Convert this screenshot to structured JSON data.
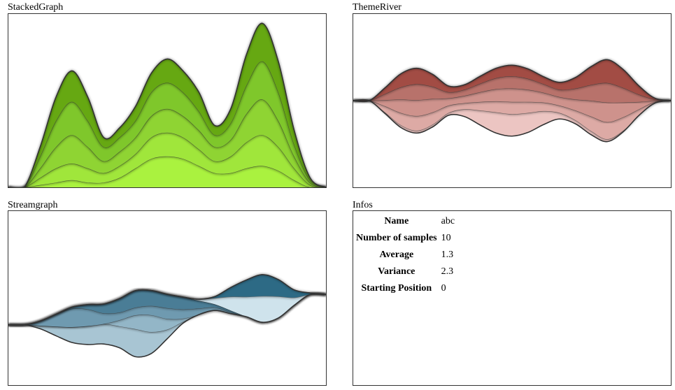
{
  "titles": {
    "stacked": "StackedGraph",
    "theme": "ThemeRiver",
    "stream": "Streamgraph",
    "infos": "Infos"
  },
  "infos": [
    {
      "key": "Name",
      "value": "abc"
    },
    {
      "key": "Number of samples",
      "value": "10"
    },
    {
      "key": "Average",
      "value": "1.3"
    },
    {
      "key": "Variance",
      "value": "2.3"
    },
    {
      "key": "Starting Position",
      "value": "0"
    }
  ],
  "chart_data": [
    {
      "type": "area",
      "title": "StackedGraph",
      "layout": "stacked",
      "x": [
        0,
        1,
        2,
        3,
        4,
        5,
        6,
        7,
        8,
        9,
        10,
        11,
        12,
        13,
        14,
        15,
        16,
        17,
        18,
        19,
        20
      ],
      "series": [
        {
          "values": [
            0,
            0,
            0.1,
            0.2,
            0.3,
            0.2,
            0.2,
            0.4,
            0.8,
            1.2,
            1.3,
            1.2,
            0.9,
            0.6,
            0.6,
            0.8,
            0.9,
            0.7,
            0.3,
            0,
            0
          ],
          "color": "#aaf23f"
        },
        {
          "values": [
            0,
            0,
            0.3,
            0.6,
            0.7,
            0.6,
            0.4,
            0.5,
            0.6,
            0.9,
            1.0,
            0.9,
            0.7,
            0.5,
            0.7,
            1.1,
            1.3,
            1.0,
            0.5,
            0.1,
            0
          ],
          "color": "#a0e63b"
        },
        {
          "values": [
            0,
            0,
            0.4,
            0.9,
            1.2,
            0.9,
            0.5,
            0.6,
            0.7,
            0.9,
            1.0,
            0.9,
            0.8,
            0.6,
            0.7,
            1.2,
            1.5,
            1.1,
            0.5,
            0.1,
            0
          ],
          "color": "#8fd433"
        },
        {
          "values": [
            0,
            0,
            0.5,
            1.1,
            1.4,
            1.1,
            0.6,
            0.6,
            0.7,
            1.0,
            1.1,
            1.0,
            0.8,
            0.5,
            0.7,
            1.2,
            1.6,
            1.2,
            0.5,
            0.1,
            0
          ],
          "color": "#7fc72b"
        },
        {
          "values": [
            0,
            0,
            0.4,
            1.0,
            1.3,
            1.0,
            0.4,
            0.4,
            0.6,
            0.8,
            1.0,
            0.9,
            0.8,
            0.4,
            0.6,
            1.3,
            1.6,
            1.3,
            0.6,
            0.1,
            0
          ],
          "color": "#66a812"
        }
      ]
    },
    {
      "type": "area",
      "title": "ThemeRiver",
      "layout": "symmetric",
      "x": [
        0,
        1,
        2,
        3,
        4,
        5,
        6,
        7,
        8,
        9,
        10,
        11,
        12,
        13,
        14,
        15,
        16,
        17,
        18,
        19,
        20
      ],
      "series": [
        {
          "values": [
            0,
            0,
            0.1,
            0.2,
            0.2,
            0.2,
            0.2,
            0.6,
            1.2,
            1.7,
            1.8,
            1.6,
            1.1,
            0.5,
            0.3,
            0.3,
            0.2,
            0.1,
            0,
            0,
            0
          ],
          "color": "#ecc5c2"
        },
        {
          "values": [
            0,
            0,
            0.5,
            1.0,
            1.2,
            1.0,
            0.6,
            0.5,
            0.7,
            0.9,
            1.0,
            0.9,
            0.7,
            0.6,
            0.8,
            1.2,
            1.4,
            1.1,
            0.5,
            0.1,
            0
          ],
          "color": "#ddaaa5"
        },
        {
          "values": [
            0,
            0,
            0.5,
            1.1,
            1.3,
            1.1,
            0.6,
            0.6,
            0.8,
            1.0,
            1.1,
            1.0,
            0.8,
            0.7,
            0.9,
            1.3,
            1.6,
            1.2,
            0.6,
            0.1,
            0
          ],
          "color": "#ce928c"
        },
        {
          "values": [
            0,
            0,
            0.5,
            1.0,
            1.3,
            1.0,
            0.5,
            0.5,
            0.7,
            0.9,
            1.0,
            0.9,
            0.7,
            0.6,
            0.9,
            1.3,
            1.6,
            1.2,
            0.6,
            0.1,
            0
          ],
          "color": "#b8726b"
        },
        {
          "values": [
            0,
            0,
            0.5,
            1.1,
            1.3,
            1.0,
            0.5,
            0.4,
            0.6,
            0.8,
            0.9,
            0.8,
            0.6,
            0.6,
            0.9,
            1.5,
            1.9,
            1.5,
            0.7,
            0.1,
            0
          ],
          "color": "#a24c44"
        }
      ]
    },
    {
      "type": "area",
      "title": "Streamgraph",
      "layout": "wiggle",
      "x": [
        0,
        1,
        2,
        3,
        4,
        5,
        6,
        7,
        8,
        9,
        10,
        11,
        12,
        13,
        14,
        15,
        16,
        17,
        18,
        19,
        20
      ],
      "series": [
        {
          "values": [
            0,
            0,
            0.2,
            0.6,
            1.0,
            1.2,
            1.3,
            1.4,
            1.8,
            1.4,
            0.6,
            0.1,
            0,
            0,
            0,
            0,
            0,
            0,
            0,
            0,
            0
          ],
          "color": "#a8c5d3"
        },
        {
          "values": [
            0,
            0,
            0,
            0,
            0,
            0,
            0,
            0.4,
            0.9,
            1.1,
            0.7,
            0.2,
            0,
            0,
            0,
            0,
            0,
            0,
            0,
            0,
            0
          ],
          "color": "#93b6c7"
        },
        {
          "values": [
            0,
            0,
            0.3,
            0.8,
            1.2,
            1.1,
            0.7,
            0.5,
            0.5,
            0.6,
            0.7,
            0.6,
            0.4,
            0.2,
            0.1,
            0,
            0,
            0,
            0,
            0,
            0
          ],
          "color": "#6f9ab0"
        },
        {
          "values": [
            0,
            0,
            0,
            0,
            0.1,
            0.3,
            0.6,
            0.9,
            1.1,
            1.0,
            0.9,
            0.8,
            0.5,
            0.2,
            0.1,
            0,
            0,
            0,
            0,
            0,
            0
          ],
          "color": "#4a7d96"
        },
        {
          "values": [
            0,
            0,
            0,
            0,
            0,
            0,
            0,
            0,
            0,
            0,
            0,
            0,
            0.1,
            0.4,
            0.9,
            1.3,
            1.7,
            1.4,
            0.5,
            0,
            0
          ],
          "color": "#cfe3ec"
        },
        {
          "values": [
            0,
            0,
            0,
            0,
            0,
            0,
            0,
            0,
            0,
            0,
            0,
            0,
            0,
            0.1,
            0.6,
            1.1,
            1.4,
            1.1,
            0.5,
            0.1,
            0
          ],
          "color": "#2d6a85"
        }
      ]
    }
  ]
}
